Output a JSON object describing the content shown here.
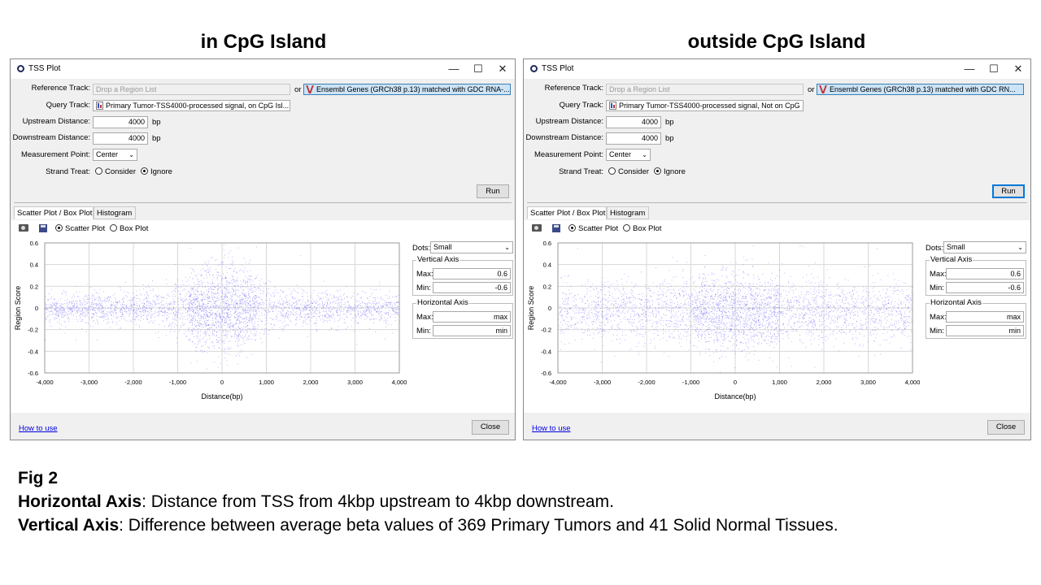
{
  "figure": {
    "fig_label": "Fig 2",
    "h_axis_label": "Horizontal Axis",
    "h_axis_text": ": Distance from TSS from 4kbp upstream to 4kbp downstream.",
    "v_axis_label": "Vertical Axis",
    "v_axis_text": ": Difference between average beta values of 369 Primary Tumors and 41 Solid Normal Tissues."
  },
  "panels": [
    {
      "heading": "in CpG Island",
      "window_title": "TSS Plot",
      "controls": {
        "minimize": "—",
        "maximize": "☐",
        "close": "✕"
      },
      "form": {
        "reference_track_label": "Reference Track:",
        "reference_placeholder": "Drop a Region List",
        "or": "or",
        "reference_gene_track": "Ensembl Genes (GRCh38 p.13) matched with GDC RNA-...",
        "query_track_label": "Query Track:",
        "query_track": "Primary Tumor-TSS4000-processed signal, on CpG Isl...",
        "upstream_label": "Upstream Distance:",
        "upstream_value": "4000",
        "downstream_label": "Downstream Distance:",
        "downstream_value": "4000",
        "bp": "bp",
        "measurement_label": "Measurement Point:",
        "measurement_value": "Center",
        "strand_label": "Strand Treat:",
        "strand_consider": "Consider",
        "strand_ignore": "Ignore",
        "strand_selected": "Ignore",
        "run": "Run"
      },
      "tabs": [
        "Scatter Plot / Box Plot",
        "Histogram"
      ],
      "active_tab": 0,
      "toolbar": {
        "camera_icon": "camera-icon",
        "save_icon": "save-icon",
        "scatter_option": "Scatter Plot",
        "box_option": "Box Plot",
        "selected": "Scatter Plot"
      },
      "settings": {
        "dots_label": "Dots:",
        "dots_value": "Small",
        "vertical_axis_title": "Vertical Axis",
        "v_max_label": "Max:",
        "v_max": "0.6",
        "v_min_label": "Min:",
        "v_min": "-0.6",
        "horizontal_axis_title": "Horizontal Axis",
        "h_max_label": "Max:",
        "h_max": "max",
        "h_min_label": "Min:",
        "h_min": "min"
      },
      "footer": {
        "how_to_use": "How to use",
        "close": "Close"
      },
      "chart_data": {
        "type": "scatter",
        "xlabel": "Distance(bp)",
        "ylabel": "Region Score",
        "xlim": [
          -4000,
          4000
        ],
        "ylim": [
          -0.6,
          0.6
        ],
        "x_ticks": [
          "-4,000",
          "-3,000",
          "-2,000",
          "-1,000",
          "0",
          "1,000",
          "2,000",
          "3,000",
          "4,000"
        ],
        "y_ticks": [
          "0.6",
          "0.4",
          "0.2",
          "0",
          "-0.2",
          "-0.4",
          "-0.6"
        ],
        "grid": true,
        "point_color": "#6a5cf2",
        "distribution": {
          "center_y": 0.0,
          "background_spread": 0.08,
          "peak_spread_at_tss": 0.22,
          "peak_width_bp": 700
        }
      }
    },
    {
      "heading": "outside CpG Island",
      "window_title": "TSS Plot",
      "controls": {
        "minimize": "—",
        "maximize": "☐",
        "close": "✕"
      },
      "form": {
        "reference_track_label": "Reference Track:",
        "reference_placeholder": "Drop a Region List",
        "or": "or",
        "reference_gene_track": "Ensembl Genes (GRCh38 p.13) matched with GDC RN...",
        "query_track_label": "Query Track:",
        "query_track": "Primary Tumor-TSS4000-processed signal, Not on CpG ...",
        "upstream_label": "Upstream Distance:",
        "upstream_value": "4000",
        "downstream_label": "Downstream Distance:",
        "downstream_value": "4000",
        "bp": "bp",
        "measurement_label": "Measurement Point:",
        "measurement_value": "Center",
        "strand_label": "Strand Treat:",
        "strand_consider": "Consider",
        "strand_ignore": "Ignore",
        "strand_selected": "Ignore",
        "run": "Run"
      },
      "tabs": [
        "Scatter Plot / Box Plot",
        "Histogram"
      ],
      "active_tab": 0,
      "toolbar": {
        "camera_icon": "camera-icon",
        "save_icon": "save-icon",
        "scatter_option": "Scatter Plot",
        "box_option": "Box Plot",
        "selected": "Scatter Plot"
      },
      "settings": {
        "dots_label": "Dots:",
        "dots_value": "Small",
        "vertical_axis_title": "Vertical Axis",
        "v_max_label": "Max:",
        "v_max": "0.6",
        "v_min_label": "Min:",
        "v_min": "-0.6",
        "horizontal_axis_title": "Horizontal Axis",
        "h_max_label": "Max:",
        "h_max": "max",
        "h_min_label": "Min:",
        "h_min": "min"
      },
      "footer": {
        "how_to_use": "How to use",
        "close": "Close"
      },
      "chart_data": {
        "type": "scatter",
        "xlabel": "Distance(bp)",
        "ylabel": "Region Score",
        "xlim": [
          -4000,
          4000
        ],
        "ylim": [
          -0.6,
          0.6
        ],
        "x_ticks": [
          "-4,000",
          "-3,000",
          "-2,000",
          "-1,000",
          "0",
          "1,000",
          "2,000",
          "3,000",
          "4,000"
        ],
        "y_ticks": [
          "0.6",
          "0.4",
          "0.2",
          "0",
          "-0.2",
          "-0.4",
          "-0.6"
        ],
        "grid": true,
        "point_color": "#6a5cf2",
        "distribution": {
          "center_y": -0.03,
          "background_spread": 0.14,
          "peak_spread_at_tss": 0.2,
          "peak_width_bp": 900
        }
      }
    }
  ]
}
